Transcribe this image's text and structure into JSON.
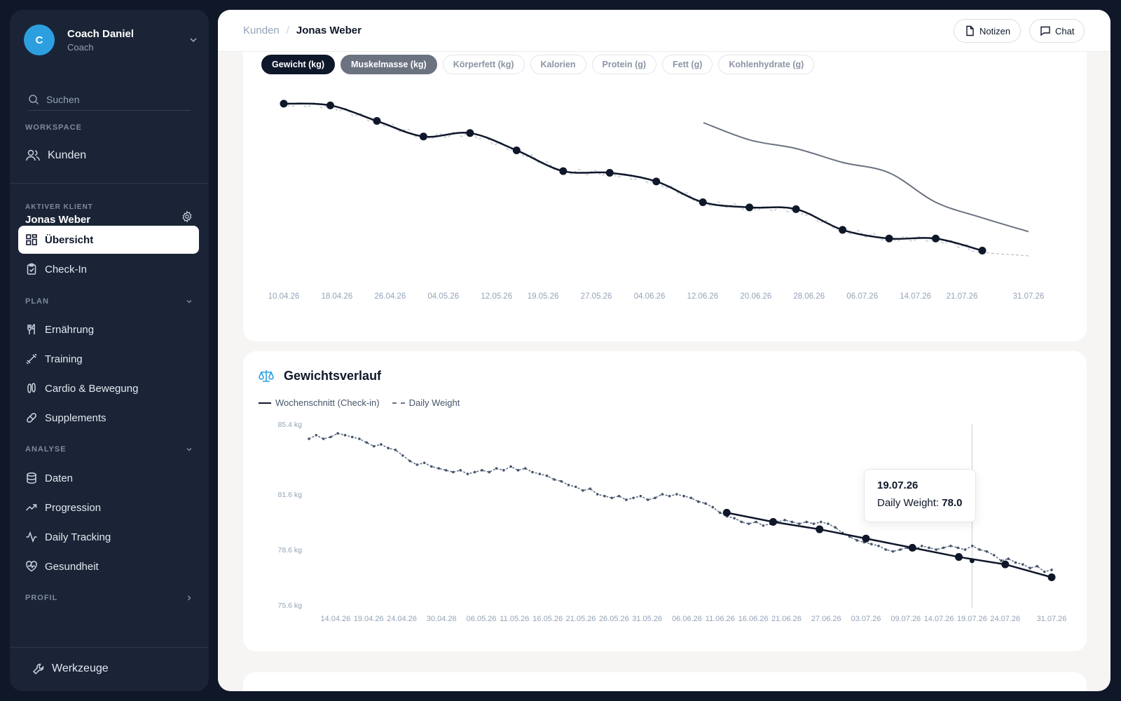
{
  "sidebar": {
    "user_initial": "C",
    "user_name": "Coach Daniel",
    "user_role": "Coach",
    "search_placeholder": "Suchen",
    "workspace_label": "WORKSPACE",
    "workspace_item": "Kunden",
    "client_label": "AKTIVER KLIENT",
    "client_name": "Jonas Weber",
    "overview": "Übersicht",
    "checkin": "Check-In",
    "plan_label": "PLAN",
    "plan_items": [
      "Ernährung",
      "Training",
      "Cardio & Bewegung",
      "Supplements"
    ],
    "analyse_label": "ANALYSE",
    "analyse_items": [
      "Daten",
      "Progression",
      "Daily Tracking",
      "Gesundheit"
    ],
    "profil_label": "PROFIL",
    "tools": "Werkzeuge"
  },
  "topbar": {
    "crumb_parent": "Kunden",
    "crumb_separator": "/",
    "crumb_current": "Jonas Weber",
    "notes_button": "Notizen",
    "chat_button": "Chat"
  },
  "metrics_card": {
    "pills": [
      "Gewicht (kg)",
      "Muskelmasse (kg)",
      "Körperfett (kg)",
      "Kalorien",
      "Protein (g)",
      "Fett (g)",
      "Kohlenhydrate (g)"
    ]
  },
  "weight_card": {
    "title": "Gewichtsverlauf",
    "legend_weekly": "Wochenschnitt (Check-in)",
    "legend_daily": "Daily Weight",
    "tooltip_date": "19.07.26",
    "tooltip_label": "Daily Weight:",
    "tooltip_value": "78.0"
  },
  "chart_data": [
    {
      "type": "line",
      "x_labels": [
        "10.04.26",
        "18.04.26",
        "26.04.26",
        "04.05.26",
        "12.05.26",
        "19.05.26",
        "27.05.26",
        "04.06.26",
        "12.06.26",
        "20.06.26",
        "28.06.26",
        "06.07.26",
        "14.07.26",
        "21.07.26",
        "31.07.26"
      ],
      "series": [
        {
          "values": [
            84.6,
            84.5,
            83.6,
            82.7,
            82.9,
            81.9,
            80.7,
            80.6,
            80.1,
            78.9,
            78.6,
            78.5,
            77.3,
            76.8,
            76.8,
            76.1
          ]
        },
        {
          "values": [
            83.5,
            82.5,
            82.0,
            81.2,
            80.6,
            78.9,
            78.0,
            77.2
          ]
        }
      ]
    },
    {
      "type": "line",
      "title": "Gewichtsverlauf",
      "ylim": [
        75.6,
        85.4
      ],
      "y_ticks": [
        "85.4 kg",
        "81.6 kg",
        "78.6 kg",
        "75.6 kg"
      ],
      "x_labels": [
        "14.04.26",
        "19.04.26",
        "24.04.26",
        "30.04.26",
        "06.05.26",
        "11.05.26",
        "16.05.26",
        "21.05.26",
        "26.05.26",
        "31.05.26",
        "06.06.26",
        "11.06.26",
        "16.06.26",
        "21.06.26",
        "27.06.26",
        "03.07.26",
        "09.07.26",
        "14.07.26",
        "19.07.26",
        "24.07.26",
        "31.07.26"
      ],
      "series": [
        {
          "name": "Wochenschnitt (Check-in)",
          "x": [
            "12.06.26",
            "19.06.26",
            "26.06.26",
            "03.07.26",
            "10.07.26",
            "17.07.26",
            "24.07.26",
            "31.07.26"
          ],
          "values": [
            80.6,
            80.1,
            79.7,
            79.2,
            78.7,
            78.2,
            77.8,
            77.1
          ]
        },
        {
          "name": "Daily Weight",
          "values": [
            84.6,
            84.8,
            84.6,
            84.7,
            84.9,
            84.8,
            84.7,
            84.6,
            84.4,
            84.2,
            84.3,
            84.1,
            84.0,
            83.7,
            83.4,
            83.2,
            83.3,
            83.1,
            83.0,
            82.9,
            82.8,
            82.9,
            82.7,
            82.8,
            82.9,
            82.8,
            83.0,
            82.9,
            83.1,
            82.9,
            83.0,
            82.8,
            82.7,
            82.6,
            82.4,
            82.3,
            82.1,
            82.0,
            81.8,
            81.9,
            81.6,
            81.5,
            81.4,
            81.5,
            81.3,
            81.4,
            81.5,
            81.3,
            81.4,
            81.6,
            81.5,
            81.6,
            81.5,
            81.4,
            81.2,
            81.1,
            80.9,
            80.6,
            80.4,
            80.3,
            80.1,
            80.0,
            80.1,
            79.9,
            80.0,
            80.1,
            80.2,
            80.1,
            80.0,
            80.1,
            80.0,
            80.1,
            80.0,
            79.8,
            79.5,
            79.3,
            79.1,
            79.0,
            78.9,
            78.8,
            78.6,
            78.5,
            78.6,
            78.7,
            78.6,
            78.8,
            78.7,
            78.6,
            78.7,
            78.8,
            78.7,
            78.6,
            78.8,
            78.6,
            78.5,
            78.3,
            78.0,
            78.1,
            77.9,
            77.8,
            77.6,
            77.7,
            77.4,
            77.5
          ]
        }
      ]
    }
  ]
}
